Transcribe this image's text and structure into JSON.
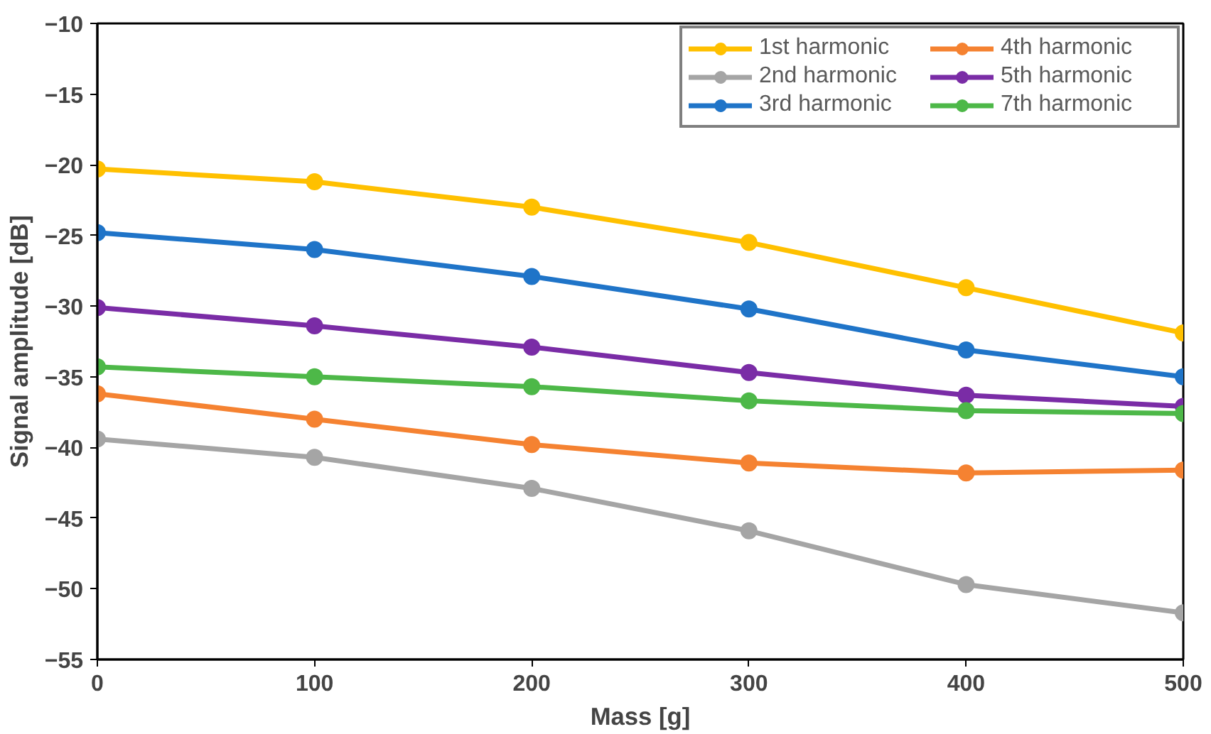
{
  "chart_data": {
    "type": "line",
    "xlabel": "Mass [g]",
    "ylabel": "Signal amplitude [dB]",
    "x": [
      0,
      100,
      200,
      300,
      400,
      500
    ],
    "series": [
      {
        "name": "1st harmonic",
        "color": "#ffc000",
        "values": [
          -20.3,
          -21.2,
          -23.0,
          -25.5,
          -28.7,
          -31.9
        ]
      },
      {
        "name": "2nd harmonic",
        "color": "#a5a5a5",
        "values": [
          -39.4,
          -40.7,
          -42.9,
          -45.9,
          -49.7,
          -51.7
        ]
      },
      {
        "name": "3rd harmonic",
        "color": "#1f74c8",
        "values": [
          -24.8,
          -26.0,
          -27.9,
          -30.2,
          -33.1,
          -35.0
        ]
      },
      {
        "name": "4th harmonic",
        "color": "#f58231",
        "values": [
          -36.2,
          -38.0,
          -39.8,
          -41.1,
          -41.8,
          -41.6
        ]
      },
      {
        "name": "5th harmonic",
        "color": "#7a2ca6",
        "values": [
          -30.1,
          -31.4,
          -32.9,
          -34.7,
          -36.3,
          -37.1
        ]
      },
      {
        "name": "7th harmonic",
        "color": "#4db848",
        "values": [
          -34.3,
          -35.0,
          -35.7,
          -36.7,
          -37.4,
          -37.6
        ]
      }
    ],
    "xlim": [
      0,
      500
    ],
    "xticks": [
      0,
      100,
      200,
      300,
      400,
      500
    ],
    "ylim": [
      -55,
      -10
    ],
    "yticks": [
      -55,
      -50,
      -45,
      -40,
      -35,
      -30,
      -25,
      -20,
      -15,
      -10
    ],
    "grid": false,
    "legend": "top right",
    "marker": "circle",
    "line_style": "solid"
  }
}
